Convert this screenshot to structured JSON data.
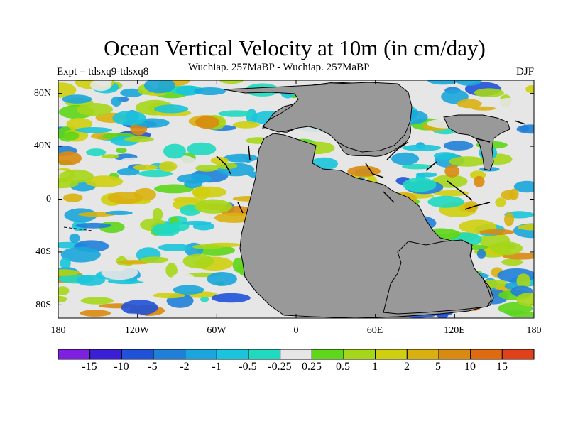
{
  "title": "Ocean Vertical Velocity at 10m (in cm/day)",
  "subtitle": "Wuchiap. 257MaBP - Wuchiap. 257MaBP",
  "experiment": "Expt = tdsxq9-tdsxq8",
  "season": "DJF",
  "map": {
    "projection": "cylindrical equidistant",
    "lat_ticks": [
      "80N",
      "40N",
      "0",
      "40S",
      "80S"
    ],
    "lon_ticks": [
      "180",
      "120W",
      "60W",
      "0",
      "60E",
      "120E",
      "180"
    ],
    "land_color": "#999999"
  },
  "colorbar": {
    "labels": [
      "-15",
      "-10",
      "-5",
      "-2",
      "-1",
      "-0.5",
      "-0.25",
      "0.25",
      "0.5",
      "1",
      "2",
      "5",
      "10",
      "15"
    ],
    "colors": [
      "#7f1fe0",
      "#3a1fd6",
      "#1f52d9",
      "#1f7fd9",
      "#1aa6dc",
      "#19c4dc",
      "#1fd9c0",
      "#e6e6e6",
      "#5ed61a",
      "#a6d61a",
      "#cfcf10",
      "#d9b010",
      "#d98a10",
      "#e06a10",
      "#e0401a"
    ]
  }
}
